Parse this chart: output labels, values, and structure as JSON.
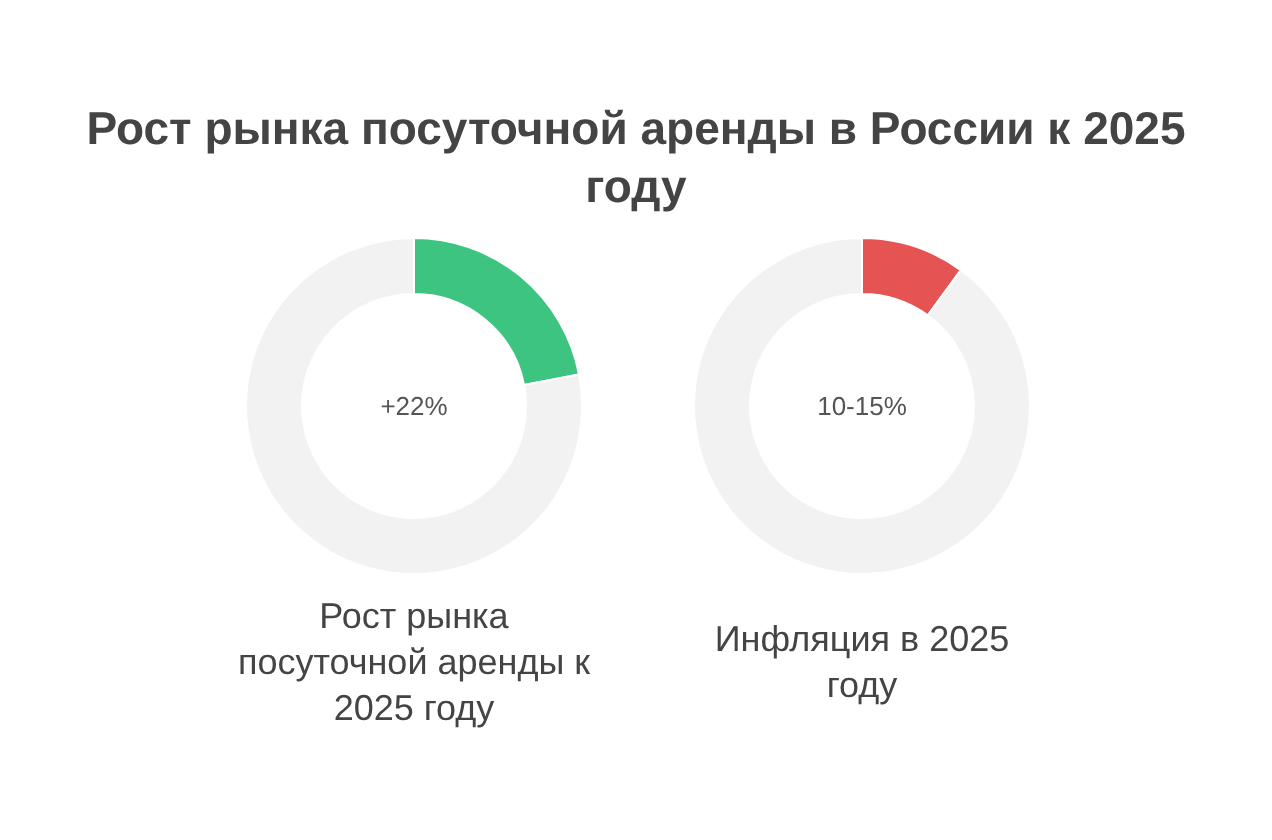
{
  "chart_data": [
    {
      "type": "donut",
      "title": "Рост рынка посуточной аренды в России к 2025 году",
      "xlabel": "Рост рынка посуточной аренды к 2025 году",
      "categories": [
        null,
        null
      ],
      "values": [
        22,
        78
      ],
      "colors": [
        "#3ec481",
        "#f2f2f2"
      ],
      "annotations": [
        "+22%"
      ]
    },
    {
      "type": "donut",
      "xlabel": "Инфляция в 2025 году",
      "categories": [
        null,
        null
      ],
      "values": [
        10,
        90
      ],
      "colors": [
        "#e65353",
        "#f2f2f2"
      ],
      "annotations": [
        "10-15%"
      ]
    }
  ]
}
